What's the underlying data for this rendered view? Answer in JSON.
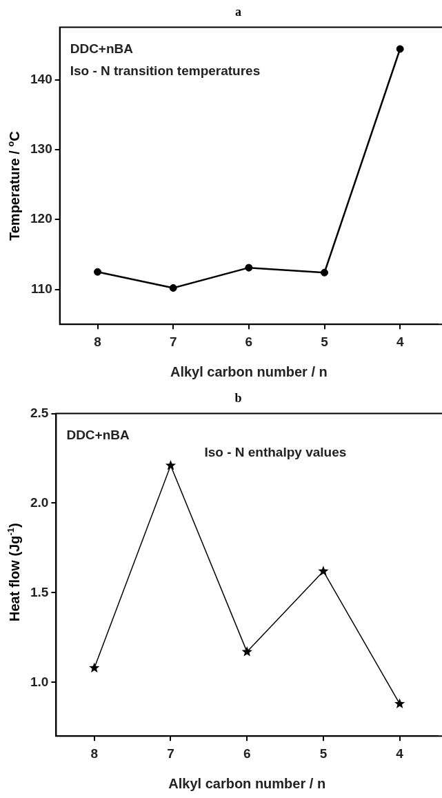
{
  "chart_data": [
    {
      "type": "line",
      "title": "a",
      "xlabel": "Alkyl carbon number / n",
      "ylabel": "Temperature / $^{o}$C",
      "categories": [
        "8",
        "7",
        "6",
        "5",
        "4"
      ],
      "series": [
        {
          "color": "#000000",
          "values": [
            112.5,
            110.2,
            113.1,
            112.4,
            144.4
          ]
        }
      ],
      "ylim": [
        105,
        147.5
      ],
      "yticks": [
        110,
        120,
        130,
        140
      ],
      "marker": "circle",
      "grid": false,
      "legend": false,
      "annotations": [
        "DDC+nBA",
        "Iso - N transition temperatures"
      ]
    },
    {
      "type": "line",
      "title": "b",
      "xlabel": "Alkyl carbon number / n",
      "ylabel": "Heat flow (Jg$^{-1}$)",
      "categories": [
        "8",
        "7",
        "6",
        "5",
        "4"
      ],
      "series": [
        {
          "color": "#000000",
          "values": [
            1.08,
            2.21,
            1.17,
            1.62,
            0.88
          ]
        }
      ],
      "ylim": [
        0.7,
        2.5
      ],
      "yticks": [
        {
          "value": 1.0,
          "label": "1.0"
        },
        {
          "value": 1.5,
          "label": "1.5"
        },
        {
          "value": 2.0,
          "label": "2.0"
        },
        {
          "value": 2.5,
          "label": "2.5"
        }
      ],
      "marker": "star",
      "grid": false,
      "legend": false,
      "annotations": [
        "DDC+nBA",
        "Iso - N enthalpy values"
      ]
    }
  ]
}
